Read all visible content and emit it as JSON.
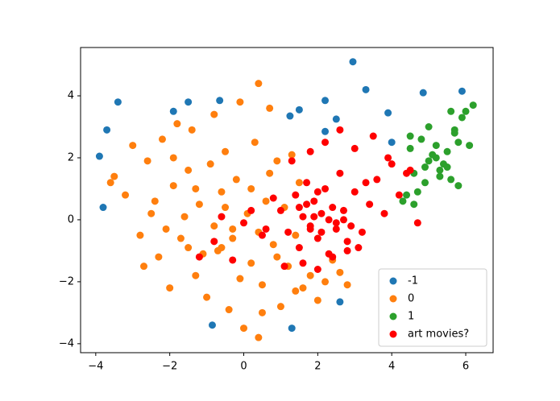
{
  "chart_data": {
    "type": "scatter",
    "xlim": [
      -4.41,
      6.74
    ],
    "ylim": [
      -4.29,
      5.56
    ],
    "xticks": [
      {
        "value": -4,
        "label": "−4"
      },
      {
        "value": -2,
        "label": "−2"
      },
      0,
      2,
      4,
      6
    ],
    "yticks": [
      {
        "value": -4,
        "label": "−4"
      },
      {
        "value": -2,
        "label": "−2"
      },
      0,
      2,
      4
    ],
    "legend": "lower right",
    "series": [
      {
        "name": "-1",
        "color": "#1f77b4",
        "x": [
          -3.9,
          -3.7,
          -3.4,
          -3.8,
          -1.9,
          -1.5,
          -0.65,
          1.25,
          1.5,
          2.2,
          2.2,
          2.5,
          2.95,
          3.3,
          3.9,
          4.85,
          5.9,
          -0.85,
          1.3,
          2.6,
          4.0
        ],
        "y": [
          2.05,
          2.9,
          3.8,
          0.4,
          3.5,
          3.8,
          3.85,
          3.35,
          3.55,
          3.85,
          2.85,
          3.25,
          5.1,
          4.2,
          3.45,
          4.1,
          4.15,
          -3.4,
          -3.5,
          -2.65,
          2.5
        ]
      },
      {
        "name": "0",
        "color": "#ff7f0e",
        "x": [
          -3.5,
          -3.2,
          -3.0,
          -2.8,
          -2.6,
          -2.5,
          -2.3,
          -2.2,
          -2.0,
          -1.9,
          -1.8,
          -1.7,
          -1.5,
          -1.4,
          -1.3,
          -1.2,
          -1.0,
          -0.9,
          -0.8,
          -0.7,
          -0.6,
          -0.5,
          -0.4,
          -0.3,
          -0.2,
          -0.1,
          0.0,
          0.1,
          0.2,
          0.3,
          0.4,
          0.5,
          0.6,
          0.7,
          0.8,
          0.9,
          1.0,
          1.1,
          1.2,
          1.3,
          1.4,
          1.5,
          1.6,
          1.8,
          2.0,
          2.2,
          2.4,
          2.6,
          2.8,
          -2.7,
          -2.1,
          -1.6,
          -1.1,
          -0.6,
          -0.1,
          0.4,
          0.9,
          1.4,
          -2.4,
          -1.9,
          -1.3,
          -0.8,
          -0.3,
          0.2,
          0.7,
          -1.5,
          -0.5,
          0.5,
          0.4,
          -3.6
        ],
        "y": [
          1.4,
          0.8,
          2.4,
          -0.5,
          1.9,
          0.2,
          -1.2,
          2.6,
          -2.2,
          1.1,
          3.1,
          -0.6,
          1.6,
          2.9,
          -1.8,
          0.5,
          -2.5,
          1.8,
          3.4,
          -1.0,
          0.9,
          2.2,
          -2.9,
          -0.3,
          1.3,
          3.8,
          -3.5,
          0.2,
          -1.4,
          2.5,
          4.4,
          -2.1,
          0.6,
          3.6,
          -0.8,
          1.9,
          -2.8,
          0.4,
          -1.5,
          2.1,
          -0.5,
          1.2,
          -2.2,
          -1.8,
          -2.6,
          -2.0,
          -1.3,
          -1.7,
          -2.1,
          -1.5,
          -0.3,
          0.1,
          -1.1,
          -0.9,
          -1.9,
          -0.4,
          -1.2,
          -2.3,
          0.6,
          2.0,
          1.0,
          -0.2,
          -0.6,
          1.0,
          1.5,
          -0.9,
          0.4,
          -3.0,
          -3.8,
          1.2
        ]
      },
      {
        "name": "1",
        "color": "#2ca02c",
        "x": [
          4.5,
          4.6,
          4.7,
          4.8,
          4.9,
          5.0,
          5.1,
          5.2,
          5.3,
          5.4,
          5.5,
          5.6,
          5.7,
          5.8,
          5.9,
          6.0,
          6.2,
          4.4,
          4.5,
          5.0,
          5.3,
          5.6,
          5.8,
          4.6,
          5.2,
          5.5,
          6.1,
          4.3,
          5.7,
          4.9
        ],
        "y": [
          2.3,
          1.5,
          0.9,
          2.6,
          1.2,
          1.9,
          2.1,
          2.4,
          1.6,
          1.8,
          2.2,
          1.3,
          2.9,
          2.5,
          3.3,
          3.5,
          3.7,
          0.8,
          2.7,
          3.0,
          1.4,
          3.5,
          1.1,
          0.5,
          2.0,
          1.7,
          2.4,
          0.6,
          2.8,
          1.7
        ]
      },
      {
        "name": "art movies?",
        "color": "#ff0000",
        "x": [
          1.0,
          1.2,
          1.4,
          1.5,
          1.6,
          1.7,
          1.8,
          1.9,
          2.0,
          2.1,
          2.2,
          2.3,
          2.4,
          2.5,
          2.6,
          2.7,
          2.8,
          3.0,
          3.2,
          3.4,
          3.6,
          3.8,
          4.0,
          4.2,
          4.5,
          0.5,
          0.8,
          1.3,
          1.8,
          2.2,
          2.6,
          3.0,
          3.5,
          3.9,
          1.6,
          2.0,
          2.4,
          2.8,
          3.1,
          0.2,
          -0.3,
          -0.8,
          -1.2,
          -0.6,
          0.0,
          0.6,
          1.1,
          1.7,
          2.3,
          2.9,
          1.9,
          2.1,
          2.5,
          1.5,
          2.7,
          3.3,
          4.4,
          4.7,
          2.0,
          1.8
        ],
        "y": [
          0.3,
          -0.4,
          0.8,
          -0.9,
          0.1,
          1.2,
          -0.2,
          0.6,
          -0.6,
          0.2,
          1.0,
          -1.1,
          0.4,
          -0.3,
          1.5,
          0.0,
          -0.7,
          0.9,
          -0.4,
          0.5,
          1.3,
          0.2,
          1.8,
          0.8,
          1.6,
          -0.5,
          0.7,
          1.9,
          2.2,
          2.5,
          2.9,
          2.3,
          2.7,
          2.0,
          -1.4,
          -1.6,
          -1.2,
          -1.0,
          -0.9,
          0.3,
          -1.3,
          -0.7,
          -1.2,
          0.1,
          -0.1,
          -0.3,
          -1.5,
          0.5,
          0.0,
          -0.2,
          0.1,
          -0.4,
          -0.1,
          0.4,
          0.3,
          1.2,
          1.5,
          -0.1,
          0.9,
          -0.3
        ]
      }
    ]
  }
}
